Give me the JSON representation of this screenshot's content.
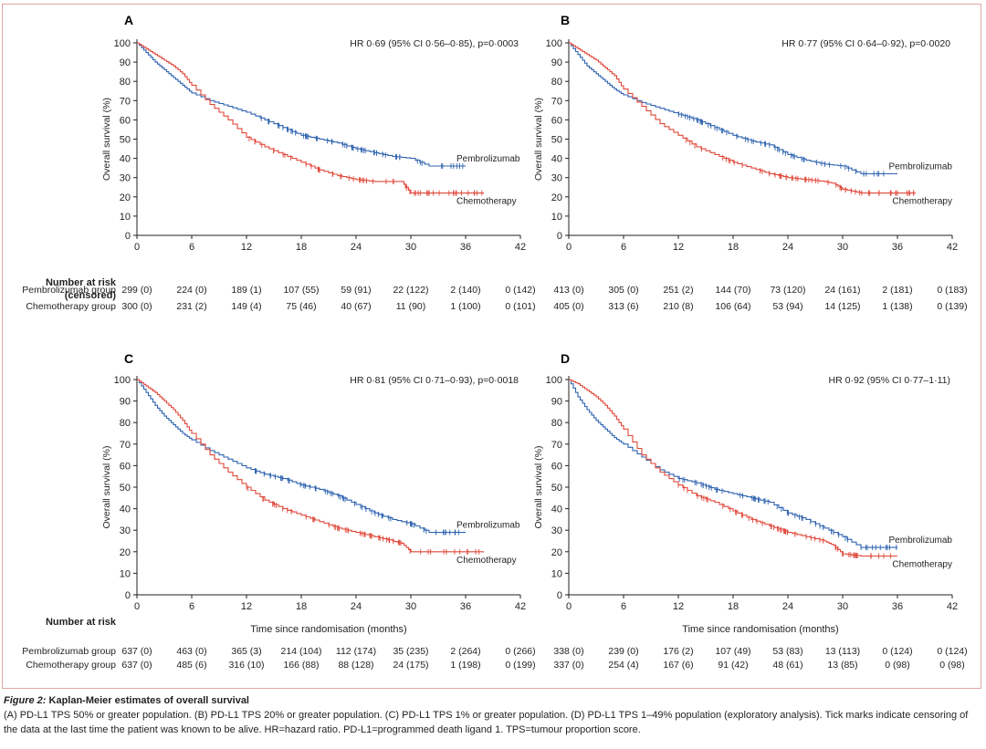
{
  "colors": {
    "pembrolizumab": "#2f63b0",
    "chemotherapy": "#e0483a"
  },
  "common": {
    "ylabel": "Overall survival (%)",
    "xlabel": "Time since randomisation (months)",
    "risk_title_1": "Number at risk",
    "risk_title_2": "(censored)",
    "pembro_row": "Pembrolizumab group",
    "chemo_row": "Chemotherapy group",
    "pembro_series": "Pembrolizumab",
    "chemo_series": "Chemotherapy",
    "yticks": [
      "0",
      "10",
      "20",
      "30",
      "40",
      "50",
      "60",
      "70",
      "80",
      "90",
      "100"
    ],
    "xticks": [
      "0",
      "6",
      "12",
      "18",
      "24",
      "30",
      "36",
      "42"
    ]
  },
  "chart_data": [
    {
      "type": "line",
      "panel": "A",
      "annotation": "HR 0·69 (95% CI 0·56–0·85), p=0·0003",
      "xlim": [
        0,
        42
      ],
      "ylim": [
        0,
        100
      ],
      "series": [
        {
          "name": "Pembrolizumab",
          "x": [
            0,
            1,
            2,
            3,
            4,
            5,
            6,
            8,
            10,
            12,
            14,
            16,
            18,
            20,
            22,
            24,
            26,
            28,
            30,
            32,
            34,
            36
          ],
          "y": [
            100,
            95,
            90,
            86,
            82,
            78,
            74,
            70,
            67,
            64,
            60,
            56,
            52,
            50,
            48,
            45,
            43,
            41,
            40,
            36,
            36,
            36
          ]
        },
        {
          "name": "Chemotherapy",
          "x": [
            0,
            1,
            2,
            3,
            4,
            5,
            6,
            8,
            10,
            12,
            14,
            16,
            18,
            20,
            22,
            24,
            26,
            28,
            29,
            30,
            32,
            36,
            38
          ],
          "y": [
            100,
            97,
            94,
            91,
            88,
            84,
            78,
            68,
            60,
            51,
            46,
            42,
            38,
            34,
            31,
            29,
            28,
            28,
            28,
            22,
            22,
            22,
            22
          ]
        }
      ],
      "risk": {
        "pembro": [
          "299 (0)",
          "224 (0)",
          "189 (1)",
          "107 (55)",
          "59 (91)",
          "22 (122)",
          "2 (140)",
          "0 (142)"
        ],
        "chemo": [
          "300 (0)",
          "231 (2)",
          "149 (4)",
          "75 (46)",
          "40 (67)",
          "11 (90)",
          "1 (100)",
          "0 (101)"
        ]
      }
    },
    {
      "type": "line",
      "panel": "B",
      "annotation": "HR 0·77 (95% CI 0·64–0·92), p=0·0020",
      "xlim": [
        0,
        42
      ],
      "ylim": [
        0,
        100
      ],
      "series": [
        {
          "name": "Pembrolizumab",
          "x": [
            0,
            1,
            2,
            3,
            4,
            5,
            6,
            8,
            10,
            12,
            14,
            16,
            18,
            20,
            22,
            24,
            26,
            28,
            30,
            32,
            34,
            36
          ],
          "y": [
            100,
            94,
            88,
            84,
            80,
            76,
            73,
            69,
            66,
            63,
            60,
            56,
            52,
            49,
            47,
            42,
            39,
            37,
            36,
            32,
            32,
            32
          ]
        },
        {
          "name": "Chemotherapy",
          "x": [
            0,
            1,
            2,
            3,
            4,
            5,
            6,
            8,
            10,
            12,
            14,
            16,
            18,
            20,
            22,
            24,
            26,
            28,
            29,
            30,
            32,
            36,
            38
          ],
          "y": [
            100,
            97,
            94,
            91,
            87,
            83,
            76,
            67,
            58,
            52,
            46,
            42,
            38,
            35,
            32,
            30,
            29,
            28,
            27,
            24,
            22,
            22,
            22
          ]
        }
      ],
      "risk": {
        "pembro": [
          "413 (0)",
          "305 (0)",
          "251 (2)",
          "144 (70)",
          "73 (120)",
          "24 (161)",
          "2 (181)",
          "0 (183)"
        ],
        "chemo": [
          "405 (0)",
          "313 (6)",
          "210 (8)",
          "106 (64)",
          "53 (94)",
          "14 (125)",
          "1 (138)",
          "0 (139)"
        ]
      }
    },
    {
      "type": "line",
      "panel": "C",
      "annotation": "HR 0·81 (95% CI 0·71–0·93), p=0·0018",
      "xlim": [
        0,
        42
      ],
      "ylim": [
        0,
        100
      ],
      "series": [
        {
          "name": "Pembrolizumab",
          "x": [
            0,
            1,
            2,
            3,
            4,
            5,
            6,
            8,
            10,
            12,
            14,
            16,
            18,
            20,
            22,
            24,
            26,
            28,
            30,
            32,
            34,
            36
          ],
          "y": [
            100,
            94,
            88,
            83,
            79,
            75,
            72,
            67,
            63,
            59,
            56,
            54,
            51,
            49,
            46,
            42,
            38,
            35,
            33,
            29,
            29,
            29
          ]
        },
        {
          "name": "Chemotherapy",
          "x": [
            0,
            1,
            2,
            3,
            4,
            5,
            6,
            8,
            10,
            12,
            14,
            16,
            18,
            20,
            22,
            24,
            26,
            28,
            29,
            30,
            32,
            36,
            38
          ],
          "y": [
            100,
            97,
            94,
            90,
            86,
            81,
            75,
            65,
            57,
            50,
            44,
            40,
            37,
            34,
            31,
            29,
            27,
            25,
            24,
            20,
            20,
            20,
            20
          ]
        }
      ],
      "risk": {
        "pembro": [
          "637 (0)",
          "463 (0)",
          "365 (3)",
          "214 (104)",
          "112 (174)",
          "35 (235)",
          "2 (264)",
          "0 (266)"
        ],
        "chemo": [
          "637 (0)",
          "485 (6)",
          "316 (10)",
          "166 (88)",
          "88 (128)",
          "24 (175)",
          "1 (198)",
          "0 (199)"
        ]
      }
    },
    {
      "type": "line",
      "panel": "D",
      "annotation": "HR 0·92 (95% CI 0·77–1·11)",
      "xlim": [
        0,
        42
      ],
      "ylim": [
        0,
        100
      ],
      "series": [
        {
          "name": "Pembrolizumab",
          "x": [
            0,
            1,
            2,
            3,
            4,
            5,
            6,
            8,
            10,
            12,
            14,
            16,
            18,
            20,
            22,
            24,
            26,
            28,
            30,
            32,
            34,
            36
          ],
          "y": [
            100,
            92,
            86,
            81,
            77,
            73,
            70,
            64,
            58,
            54,
            52,
            49,
            47,
            45,
            43,
            38,
            35,
            31,
            27,
            22,
            22,
            22
          ]
        },
        {
          "name": "Chemotherapy",
          "x": [
            0,
            1,
            2,
            3,
            4,
            5,
            6,
            8,
            10,
            12,
            14,
            16,
            18,
            20,
            22,
            24,
            26,
            28,
            29,
            30,
            32,
            36
          ],
          "y": [
            100,
            98,
            95,
            92,
            88,
            83,
            77,
            65,
            57,
            51,
            46,
            43,
            39,
            35,
            32,
            29,
            27,
            25,
            23,
            19,
            18,
            18
          ]
        }
      ],
      "risk": {
        "pembro": [
          "338 (0)",
          "239 (0)",
          "176 (2)",
          "107 (49)",
          "53 (83)",
          "13 (113)",
          "0 (124)",
          "0 (124)"
        ],
        "chemo": [
          "337 (0)",
          "254 (4)",
          "167 (6)",
          "91 (42)",
          "48 (61)",
          "13 (85)",
          "0 (98)",
          "0 (98)"
        ]
      }
    }
  ],
  "caption": {
    "title_italic": "Figure 2:",
    "title_rest": " Kaplan-Meier estimates of overall survival",
    "body": "(A) PD-L1 TPS 50% or greater population. (B) PD-L1 TPS 20% or greater population. (C) PD-L1 TPS 1% or greater population. (D) PD-L1 TPS 1–49% population (exploratory analysis). Tick marks indicate censoring of the data at the last time the patient was known to be alive. HR=hazard ratio. PD-L1=programmed death ligand 1. TPS=tumour proportion score."
  }
}
